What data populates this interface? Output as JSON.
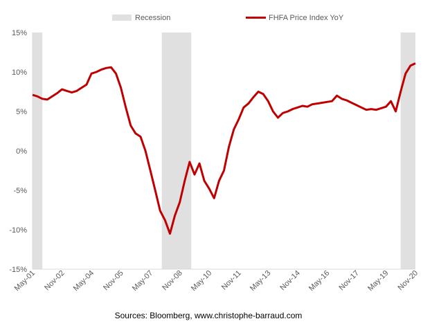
{
  "chart_data": {
    "type": "line",
    "title": "",
    "xlabel": "",
    "ylabel": "",
    "ylim": [
      -15,
      15
    ],
    "y_ticks": [
      15,
      10,
      5,
      0,
      -5,
      -10,
      -15
    ],
    "y_tick_labels": [
      "15%",
      "10%",
      "5%",
      "0%",
      "-5%",
      "-10%",
      "-15%"
    ],
    "x_range": [
      "2001-05",
      "2020-11"
    ],
    "x_tick_labels": [
      "May-01",
      "Nov-02",
      "May-04",
      "Nov-05",
      "May-07",
      "Nov-08",
      "May-10",
      "Nov-11",
      "May-13",
      "Nov-14",
      "May-16",
      "Nov-17",
      "May-19",
      "Nov-20"
    ],
    "legend_position": "top",
    "legend": [
      {
        "label": "Recession",
        "type": "area",
        "color": "#e0e0e0"
      },
      {
        "label": "FHFA Price Index YoY",
        "type": "line",
        "color": "#c00000"
      }
    ],
    "recessions": [
      {
        "start": "2001-05",
        "end": "2001-11"
      },
      {
        "start": "2007-12",
        "end": "2009-06"
      },
      {
        "start": "2020-02",
        "end": "2020-11"
      }
    ],
    "series": [
      {
        "name": "FHFA Price Index YoY",
        "color": "#c00000",
        "x": [
          "2001-05",
          "2001-08",
          "2001-11",
          "2002-02",
          "2002-05",
          "2002-08",
          "2002-11",
          "2003-02",
          "2003-05",
          "2003-08",
          "2003-11",
          "2004-02",
          "2004-05",
          "2004-08",
          "2004-11",
          "2005-02",
          "2005-05",
          "2005-08",
          "2005-11",
          "2006-02",
          "2006-05",
          "2006-08",
          "2006-11",
          "2007-02",
          "2007-05",
          "2007-08",
          "2007-11",
          "2008-02",
          "2008-05",
          "2008-08",
          "2008-11",
          "2009-02",
          "2009-05",
          "2009-08",
          "2009-11",
          "2010-02",
          "2010-05",
          "2010-08",
          "2010-11",
          "2011-02",
          "2011-05",
          "2011-08",
          "2011-11",
          "2012-02",
          "2012-05",
          "2012-08",
          "2012-11",
          "2013-02",
          "2013-05",
          "2013-08",
          "2013-11",
          "2014-02",
          "2014-05",
          "2014-08",
          "2014-11",
          "2015-02",
          "2015-05",
          "2015-08",
          "2015-11",
          "2016-02",
          "2016-05",
          "2016-08",
          "2016-11",
          "2017-02",
          "2017-05",
          "2017-08",
          "2017-11",
          "2018-02",
          "2018-05",
          "2018-08",
          "2018-11",
          "2019-02",
          "2019-05",
          "2019-08",
          "2019-11",
          "2020-02",
          "2020-05",
          "2020-08",
          "2020-11"
        ],
        "values": [
          7.1,
          6.9,
          6.6,
          6.5,
          6.9,
          7.3,
          7.8,
          7.6,
          7.4,
          7.6,
          8.0,
          8.4,
          9.8,
          10.0,
          10.3,
          10.5,
          10.6,
          9.8,
          8.0,
          5.5,
          3.2,
          2.2,
          1.8,
          0.0,
          -2.5,
          -5.0,
          -7.6,
          -8.8,
          -10.5,
          -8.2,
          -6.5,
          -3.8,
          -1.4,
          -3.0,
          -1.6,
          -3.8,
          -4.8,
          -6.0,
          -3.8,
          -2.5,
          0.5,
          2.7,
          4.0,
          5.5,
          6.0,
          6.8,
          7.5,
          7.2,
          6.3,
          5.0,
          4.2,
          4.8,
          5.0,
          5.3,
          5.5,
          5.7,
          5.6,
          5.9,
          6.0,
          6.1,
          6.2,
          6.3,
          7.0,
          6.6,
          6.4,
          6.1,
          5.8,
          5.5,
          5.2,
          5.3,
          5.2,
          5.4,
          5.6,
          6.3,
          5.0,
          7.5,
          9.8,
          10.8,
          11.1
        ]
      }
    ]
  },
  "source_text": "Sources: Bloomberg, www.christophe-barraud.com"
}
